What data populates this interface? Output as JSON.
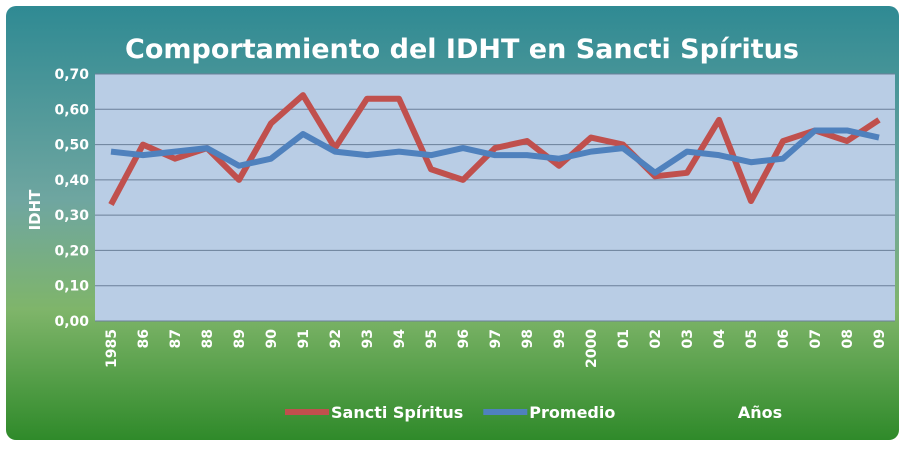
{
  "chart_data": {
    "type": "line",
    "title": "Comportamiento del IDHT en Sancti Spíritus",
    "y_label": "IDHT",
    "x_label": "Años",
    "categories": [
      "1985",
      "86",
      "87",
      "88",
      "89",
      "90",
      "91",
      "92",
      "93",
      "94",
      "95",
      "96",
      "97",
      "98",
      "99",
      "2000",
      "01",
      "02",
      "03",
      "04",
      "05",
      "06",
      "07",
      "08",
      "09"
    ],
    "series": [
      {
        "name": "Sancti Spíritus",
        "color": "#c0504d",
        "values": [
          0.33,
          0.5,
          0.46,
          0.49,
          0.4,
          0.56,
          0.64,
          0.49,
          0.63,
          0.63,
          0.43,
          0.4,
          0.49,
          0.51,
          0.44,
          0.52,
          0.5,
          0.41,
          0.42,
          0.57,
          0.34,
          0.51,
          0.54,
          0.51,
          0.57
        ]
      },
      {
        "name": "Promedio",
        "color": "#4f81bd",
        "values": [
          0.48,
          0.47,
          0.48,
          0.49,
          0.44,
          0.46,
          0.53,
          0.48,
          0.47,
          0.48,
          0.47,
          0.49,
          0.47,
          0.47,
          0.46,
          0.48,
          0.49,
          0.42,
          0.48,
          0.47,
          0.45,
          0.46,
          0.54,
          0.54,
          0.52
        ]
      }
    ],
    "ylim": [
      0,
      0.7
    ],
    "yticks": [
      {
        "value": 0,
        "label": "0,00"
      },
      {
        "value": 0.1,
        "label": "0,10"
      },
      {
        "value": 0.2,
        "label": "0,20"
      },
      {
        "value": 0.3,
        "label": "0,30"
      },
      {
        "value": 0.4,
        "label": "0,40"
      },
      {
        "value": 0.5,
        "label": "0,50"
      },
      {
        "value": 0.6,
        "label": "0,60"
      },
      {
        "value": 0.7,
        "label": "0,70"
      }
    ],
    "grid": true,
    "legend": "bottom"
  }
}
